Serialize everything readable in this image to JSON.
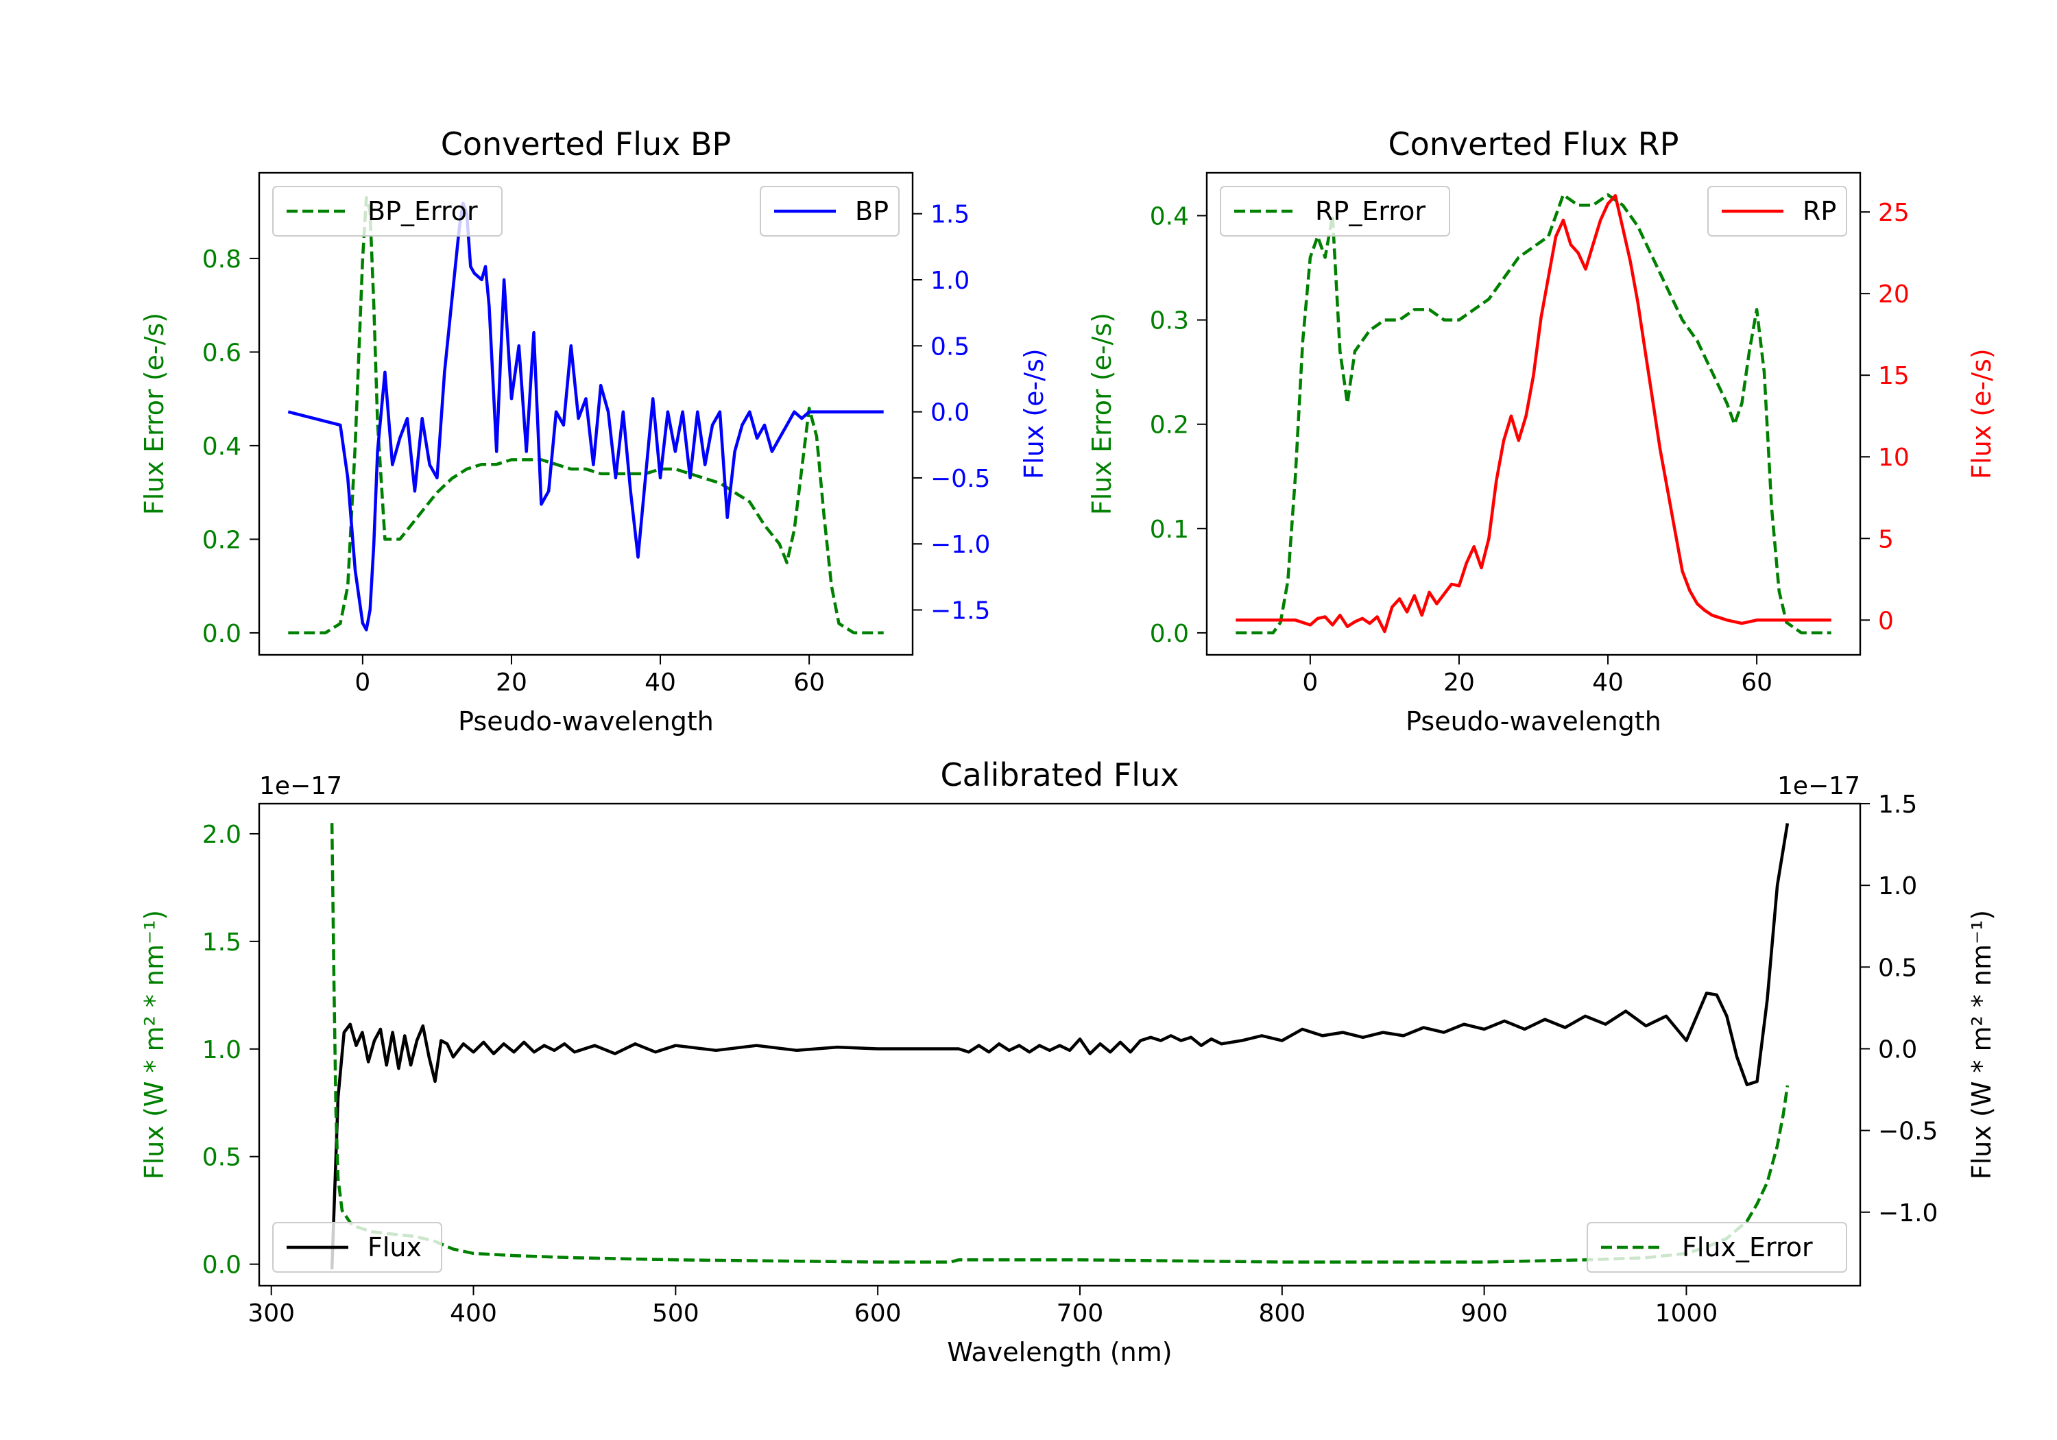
{
  "chart_data": [
    {
      "id": "bp",
      "type": "line",
      "title": "Converted Flux BP",
      "xlabel": "Pseudo-wavelength",
      "xlim": [
        -13.9,
        73.9
      ],
      "xticks": [
        0,
        20,
        40,
        60
      ],
      "left_axis": {
        "label": "Flux Error (e-/s)",
        "color": "#008000",
        "ylim": [
          -0.047,
          0.983
        ],
        "ticks": [
          0.0,
          0.2,
          0.4,
          0.6,
          0.8
        ],
        "tick_labels": [
          "0.0",
          "0.2",
          "0.4",
          "0.6",
          "0.8"
        ]
      },
      "right_axis": {
        "label": "Flux (e-/s)",
        "color": "#0000ff",
        "ylim": [
          -1.84,
          1.81
        ],
        "ticks": [
          -1.5,
          -1.0,
          -0.5,
          0.0,
          0.5,
          1.0,
          1.5
        ],
        "tick_labels": [
          "−1.5",
          "−1.0",
          "−0.5",
          "0.0",
          "0.5",
          "1.0",
          "1.5"
        ]
      },
      "series": [
        {
          "name": "BP_Error",
          "axis": "left",
          "style": "dashed",
          "color": "#008000",
          "x": [
            -10,
            -5,
            -3,
            -2,
            -1,
            0,
            0.5,
            1,
            1.5,
            2,
            3,
            4,
            5,
            6,
            8,
            10,
            12,
            14,
            16,
            18,
            20,
            22,
            24,
            26,
            28,
            30,
            32,
            34,
            36,
            38,
            40,
            42,
            44,
            46,
            48,
            50,
            52,
            54,
            56,
            57,
            58,
            59,
            60,
            61,
            62,
            63,
            64,
            66,
            70
          ],
          "y": [
            0.0,
            0.0,
            0.02,
            0.1,
            0.4,
            0.8,
            0.93,
            0.9,
            0.7,
            0.45,
            0.2,
            0.2,
            0.2,
            0.22,
            0.26,
            0.3,
            0.33,
            0.35,
            0.36,
            0.36,
            0.37,
            0.37,
            0.37,
            0.36,
            0.35,
            0.35,
            0.34,
            0.34,
            0.34,
            0.34,
            0.35,
            0.35,
            0.34,
            0.33,
            0.32,
            0.3,
            0.28,
            0.23,
            0.19,
            0.15,
            0.22,
            0.35,
            0.48,
            0.42,
            0.25,
            0.1,
            0.02,
            0.0,
            0.0
          ]
        },
        {
          "name": "BP",
          "axis": "right",
          "style": "solid",
          "color": "#0000ff",
          "x": [
            -10,
            -3,
            -2,
            -1,
            0,
            0.5,
            1,
            1.5,
            2,
            3,
            4,
            5,
            6,
            7,
            8,
            9,
            10,
            11,
            12,
            13,
            13.5,
            14,
            14.5,
            15,
            16,
            16.5,
            17,
            18,
            19,
            20,
            21,
            22,
            23,
            24,
            25,
            26,
            27,
            28,
            29,
            30,
            31,
            32,
            33,
            34,
            35,
            36,
            37,
            38,
            39,
            40,
            41,
            42,
            43,
            44,
            45,
            46,
            47,
            48,
            49,
            50,
            51,
            52,
            53,
            54,
            55,
            56,
            57,
            58,
            59,
            60,
            62,
            65,
            70
          ],
          "y": [
            0.0,
            -0.1,
            -0.5,
            -1.2,
            -1.6,
            -1.65,
            -1.5,
            -1.0,
            -0.3,
            0.3,
            -0.4,
            -0.2,
            -0.05,
            -0.6,
            -0.05,
            -0.4,
            -0.5,
            0.3,
            0.85,
            1.4,
            1.58,
            1.5,
            1.1,
            1.05,
            1.0,
            1.1,
            0.8,
            -0.3,
            1.0,
            0.1,
            0.5,
            -0.3,
            0.6,
            -0.7,
            -0.6,
            0.0,
            -0.1,
            0.5,
            -0.05,
            0.1,
            -0.4,
            0.2,
            0.0,
            -0.5,
            0.0,
            -0.6,
            -1.1,
            -0.5,
            0.1,
            -0.5,
            0.0,
            -0.3,
            0.0,
            -0.5,
            0.0,
            -0.4,
            -0.1,
            0.0,
            -0.8,
            -0.3,
            -0.1,
            0.0,
            -0.2,
            -0.1,
            -0.3,
            -0.2,
            -0.1,
            0.0,
            -0.05,
            0.0,
            0.0,
            0.0,
            0.0
          ]
        }
      ],
      "legends": [
        {
          "text": "BP_Error",
          "position": "upper left"
        },
        {
          "text": "BP",
          "position": "upper right"
        }
      ]
    },
    {
      "id": "rp",
      "type": "line",
      "title": "Converted Flux RP",
      "xlabel": "Pseudo-wavelength",
      "xlim": [
        -13.9,
        73.9
      ],
      "xticks": [
        0,
        20,
        40,
        60
      ],
      "left_axis": {
        "label": "Flux Error (e-/s)",
        "color": "#008000",
        "ylim": [
          -0.0211,
          0.4411
        ],
        "ticks": [
          0.0,
          0.1,
          0.2,
          0.3,
          0.4
        ],
        "tick_labels": [
          "0.0",
          "0.1",
          "0.2",
          "0.3",
          "0.4"
        ]
      },
      "right_axis": {
        "label": "Flux (e-/s)",
        "color": "#ff0000",
        "ylim": [
          -2.13,
          27.4
        ],
        "ticks": [
          0,
          5,
          10,
          15,
          20,
          25
        ],
        "tick_labels": [
          "0",
          "5",
          "10",
          "15",
          "20",
          "25"
        ]
      },
      "series": [
        {
          "name": "RP_Error",
          "axis": "left",
          "style": "dashed",
          "color": "#008000",
          "x": [
            -10,
            -5,
            -4,
            -3,
            -2,
            -1,
            0,
            1,
            2,
            3,
            4,
            5,
            6,
            8,
            10,
            12,
            14,
            16,
            18,
            20,
            22,
            24,
            26,
            28,
            30,
            32,
            34,
            36,
            38,
            40,
            42,
            44,
            46,
            48,
            50,
            52,
            54,
            56,
            57,
            58,
            59,
            60,
            61,
            62,
            63,
            64,
            66,
            70
          ],
          "y": [
            0.0,
            0.0,
            0.01,
            0.05,
            0.15,
            0.28,
            0.36,
            0.38,
            0.36,
            0.4,
            0.27,
            0.22,
            0.27,
            0.29,
            0.3,
            0.3,
            0.31,
            0.31,
            0.3,
            0.3,
            0.31,
            0.32,
            0.34,
            0.36,
            0.37,
            0.38,
            0.42,
            0.41,
            0.41,
            0.42,
            0.41,
            0.39,
            0.36,
            0.33,
            0.3,
            0.28,
            0.25,
            0.22,
            0.2,
            0.22,
            0.27,
            0.31,
            0.25,
            0.12,
            0.04,
            0.01,
            0.0,
            0.0
          ]
        },
        {
          "name": "RP",
          "axis": "right",
          "style": "solid",
          "color": "#ff0000",
          "x": [
            -10,
            -2,
            0,
            1,
            2,
            3,
            4,
            5,
            6,
            7,
            8,
            9,
            10,
            11,
            12,
            13,
            14,
            15,
            16,
            17,
            18,
            19,
            20,
            21,
            22,
            23,
            24,
            25,
            26,
            27,
            28,
            29,
            30,
            31,
            32,
            33,
            34,
            35,
            36,
            37,
            38,
            39,
            40,
            41,
            42,
            43,
            44,
            45,
            46,
            47,
            48,
            49,
            50,
            51,
            52,
            53,
            54,
            56,
            58,
            60,
            65,
            70
          ],
          "y": [
            0.0,
            0.0,
            -0.3,
            0.1,
            0.2,
            -0.3,
            0.3,
            -0.4,
            -0.1,
            0.1,
            -0.2,
            0.2,
            -0.7,
            0.8,
            1.3,
            0.5,
            1.5,
            0.3,
            1.7,
            1.0,
            1.6,
            2.2,
            2.1,
            3.5,
            4.5,
            3.2,
            5.0,
            8.5,
            11.0,
            12.5,
            11.0,
            12.5,
            15.0,
            18.5,
            21.0,
            23.5,
            24.5,
            23.0,
            22.5,
            21.5,
            23.0,
            24.5,
            25.5,
            26.0,
            24.0,
            22.0,
            19.5,
            16.5,
            13.5,
            10.5,
            8.0,
            5.5,
            3.0,
            1.8,
            1.0,
            0.6,
            0.3,
            0.0,
            -0.2,
            0.0,
            0.0,
            0.0
          ]
        }
      ],
      "legends": [
        {
          "text": "RP_Error",
          "position": "upper left"
        },
        {
          "text": "RP",
          "position": "upper right"
        }
      ]
    },
    {
      "id": "cal",
      "type": "line",
      "title": "Calibrated Flux",
      "xlabel": "Wavelength (nm)",
      "xlim": [
        294,
        1086
      ],
      "xticks": [
        300,
        400,
        500,
        600,
        700,
        800,
        900,
        1000
      ],
      "left_axis": {
        "label": "Flux (W * m² * nm⁻¹)",
        "color": "#008000",
        "ylim": [
          -0.1,
          2.14
        ],
        "ticks": [
          0.0,
          0.5,
          1.0,
          1.5,
          2.0
        ],
        "tick_labels": [
          "0.0",
          "0.5",
          "1.0",
          "1.5",
          "2.0"
        ],
        "offset_text": "1e−17"
      },
      "right_axis": {
        "label": "Flux (W * m² * nm⁻¹)",
        "color": "#000000",
        "ylim": [
          -1.45,
          1.5
        ],
        "ticks": [
          -1.0,
          -0.5,
          0.0,
          0.5,
          1.0,
          1.5
        ],
        "tick_labels": [
          "−1.0",
          "−0.5",
          "0.0",
          "0.5",
          "1.0",
          "1.5"
        ],
        "offset_text": "1e−17"
      },
      "series": [
        {
          "name": "Flux",
          "axis": "right",
          "style": "solid",
          "color": "#000000",
          "x": [
            330,
            333,
            336,
            339,
            342,
            345,
            348,
            351,
            354,
            357,
            360,
            363,
            366,
            369,
            372,
            375,
            378,
            381,
            384,
            387,
            390,
            395,
            400,
            405,
            410,
            415,
            420,
            425,
            430,
            435,
            440,
            445,
            450,
            460,
            470,
            480,
            490,
            500,
            520,
            540,
            560,
            580,
            600,
            620,
            640,
            645,
            650,
            655,
            660,
            665,
            670,
            675,
            680,
            685,
            690,
            695,
            700,
            705,
            710,
            715,
            720,
            725,
            730,
            735,
            740,
            745,
            750,
            755,
            760,
            765,
            770,
            780,
            790,
            800,
            810,
            820,
            830,
            840,
            850,
            860,
            870,
            880,
            890,
            900,
            910,
            920,
            930,
            940,
            950,
            960,
            970,
            980,
            990,
            1000,
            1010,
            1015,
            1020,
            1025,
            1030,
            1035,
            1040,
            1045,
            1050
          ],
          "y": [
            -1.35,
            -0.3,
            0.1,
            0.15,
            0.02,
            0.1,
            -0.08,
            0.05,
            0.12,
            -0.1,
            0.1,
            -0.12,
            0.08,
            -0.1,
            0.05,
            0.14,
            -0.05,
            -0.2,
            0.05,
            0.03,
            -0.05,
            0.03,
            -0.02,
            0.04,
            -0.03,
            0.03,
            -0.02,
            0.04,
            -0.02,
            0.02,
            -0.01,
            0.03,
            -0.02,
            0.02,
            -0.03,
            0.03,
            -0.02,
            0.02,
            -0.01,
            0.02,
            -0.01,
            0.01,
            0.0,
            0.0,
            0.0,
            -0.02,
            0.02,
            -0.02,
            0.03,
            -0.01,
            0.02,
            -0.02,
            0.02,
            -0.01,
            0.02,
            -0.01,
            0.06,
            -0.03,
            0.03,
            -0.02,
            0.04,
            -0.02,
            0.05,
            0.07,
            0.05,
            0.08,
            0.05,
            0.07,
            0.02,
            0.06,
            0.03,
            0.05,
            0.08,
            0.05,
            0.12,
            0.08,
            0.1,
            0.07,
            0.1,
            0.08,
            0.13,
            0.1,
            0.15,
            0.12,
            0.17,
            0.12,
            0.18,
            0.13,
            0.2,
            0.15,
            0.23,
            0.14,
            0.2,
            0.05,
            0.34,
            0.33,
            0.2,
            -0.05,
            -0.22,
            -0.2,
            0.3,
            1.0,
            1.38
          ]
        },
        {
          "name": "Flux_Error",
          "axis": "left",
          "style": "dashed",
          "color": "#008000",
          "x": [
            330,
            331,
            332,
            333,
            335,
            340,
            350,
            360,
            370,
            380,
            390,
            400,
            420,
            450,
            500,
            600,
            636,
            640,
            700,
            800,
            900,
            950,
            980,
            1000,
            1010,
            1020,
            1030,
            1035,
            1040,
            1045,
            1048,
            1050
          ],
          "y": [
            2.05,
            1.3,
            0.7,
            0.4,
            0.25,
            0.18,
            0.15,
            0.14,
            0.13,
            0.11,
            0.07,
            0.05,
            0.04,
            0.03,
            0.02,
            0.01,
            0.01,
            0.02,
            0.02,
            0.01,
            0.01,
            0.02,
            0.03,
            0.05,
            0.08,
            0.12,
            0.2,
            0.28,
            0.38,
            0.55,
            0.7,
            0.83
          ]
        }
      ],
      "legends": [
        {
          "text": "Flux",
          "position": "lower left"
        },
        {
          "text": "Flux_Error",
          "position": "lower right"
        }
      ]
    }
  ]
}
